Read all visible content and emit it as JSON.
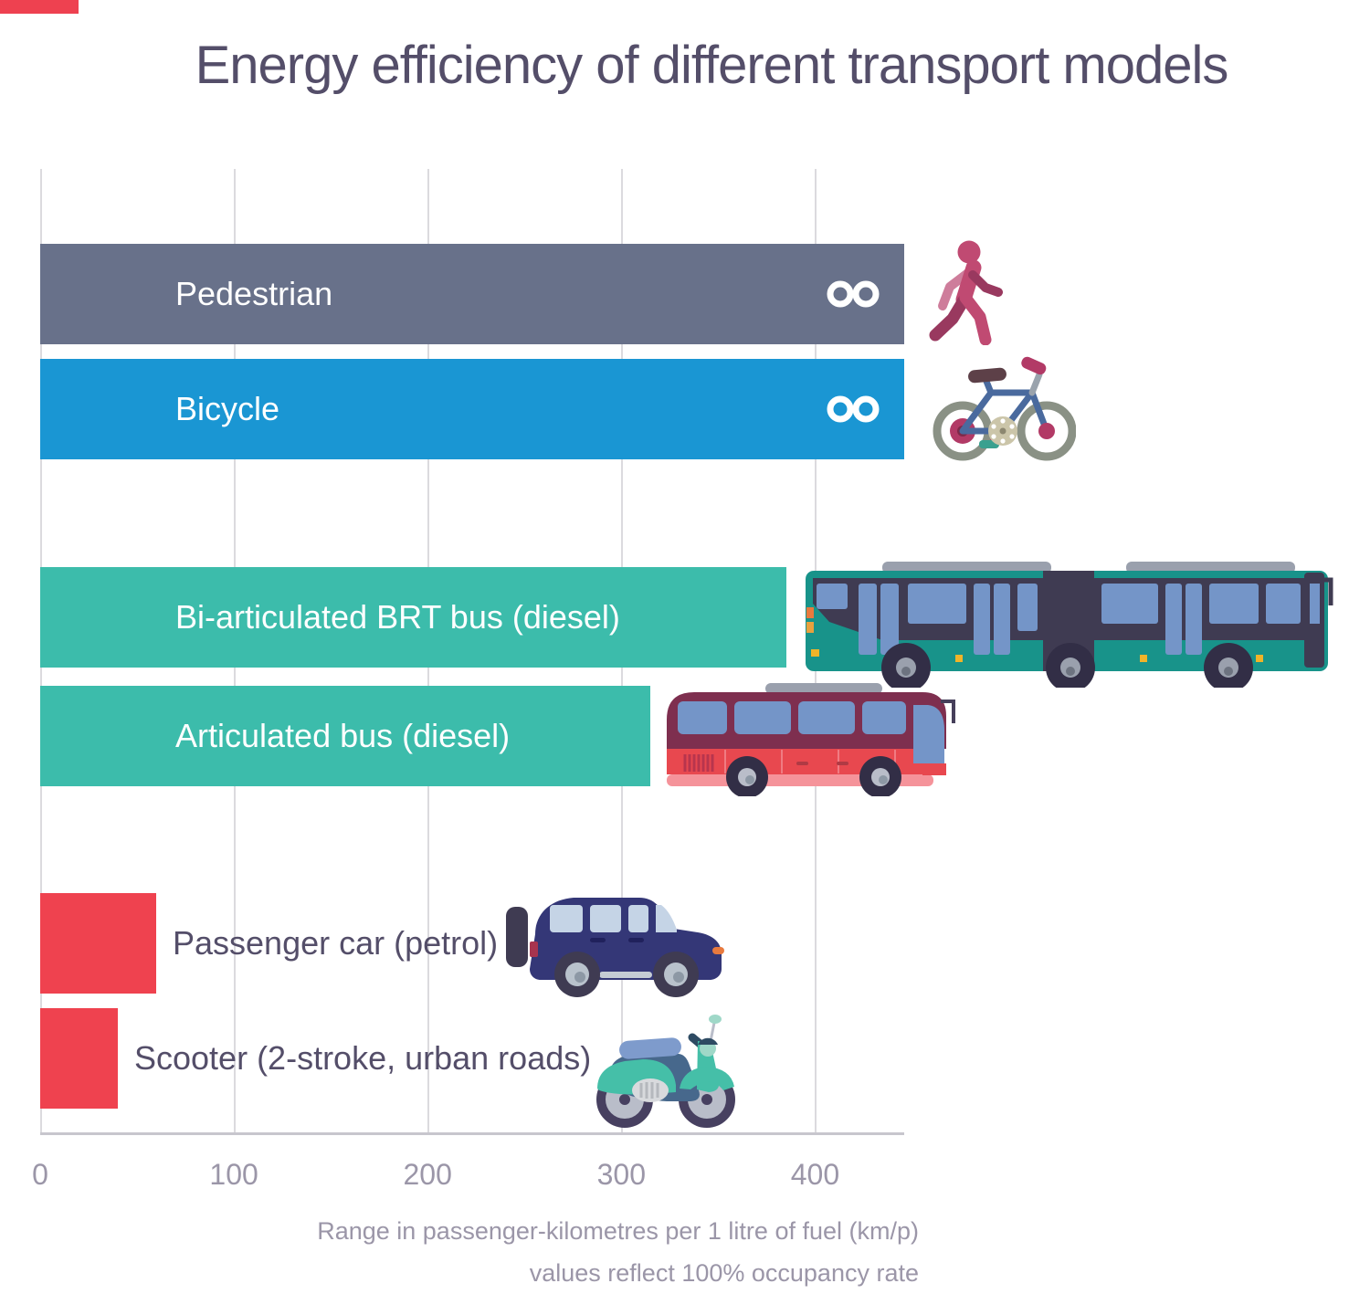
{
  "title": "Energy efficiency of different transport models",
  "footnote_line1": "Range in passenger-kilometres per 1 litre of fuel (km/p)",
  "footnote_line2": "values reflect 100% occupancy rate",
  "colors": {
    "pedestrian_bar": "#68718a",
    "bicycle_bar": "#1a96d3",
    "bus_bar": "#3cbcab",
    "car_bar": "#ef424f",
    "grid_line": "#dbdade",
    "axis_line": "#c7c6cd",
    "dark_text": "#544e69",
    "muted_text": "#9b96a8",
    "bar_label_text": "#ffffff"
  },
  "chart_data": {
    "type": "bar",
    "orientation": "horizontal",
    "title": "Energy efficiency of different transport models",
    "xlabel": "Range in passenger-kilometres per 1 litre of fuel (km/p)",
    "note": "values reflect 100% occupancy rate",
    "xlim": [
      0,
      446
    ],
    "x_ticks": [
      0,
      100,
      200,
      300,
      400
    ],
    "grid": true,
    "legend": false,
    "categories": [
      "Pedestrian",
      "Bicycle",
      "Bi-articulated BRT bus (diesel)",
      "Articulated bus (diesel)",
      "Passenger car (petrol)",
      "Scooter (2-stroke, urban roads)"
    ],
    "values": [
      "infinity",
      "infinity",
      385,
      315,
      60,
      40
    ],
    "value_display": [
      "∞",
      "∞",
      "",
      "",
      "",
      ""
    ],
    "bar_colors": [
      "#68718a",
      "#1a96d3",
      "#3cbcab",
      "#3cbcab",
      "#ef424f",
      "#ef424f"
    ],
    "label_position": [
      "inside",
      "inside",
      "inside",
      "inside",
      "outside",
      "outside"
    ],
    "icons": [
      "pedestrian",
      "bicycle",
      "brt-bus",
      "articulated-bus",
      "passenger-car",
      "scooter"
    ]
  }
}
